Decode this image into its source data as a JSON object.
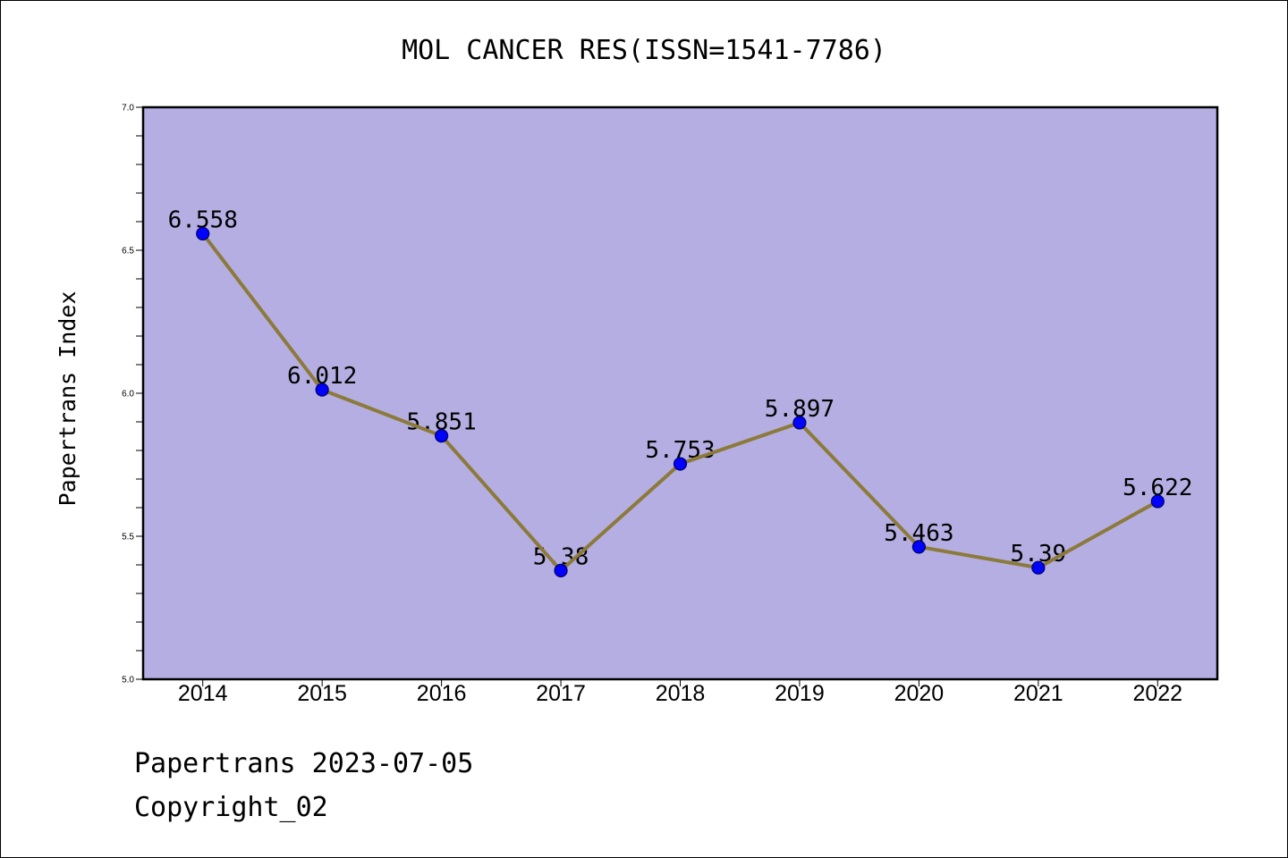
{
  "colors": {
    "page_background": "#ffffff",
    "plot_background": "#b4aee2",
    "line": "#8c7a3a",
    "marker_fill": "#0000ff",
    "marker_edge": "#000064",
    "axis": "#000000"
  },
  "chart_data": {
    "type": "line",
    "title": "MOL CANCER RES(ISSN=1541-7786)",
    "ylabel": "Papertrans Index",
    "categories": [
      "2014",
      "2015",
      "2016",
      "2017",
      "2018",
      "2019",
      "2020",
      "2021",
      "2022"
    ],
    "series": [
      {
        "values": [
          6.558,
          6.012,
          5.851,
          5.38,
          5.753,
          5.897,
          5.463,
          5.39,
          5.622
        ]
      }
    ],
    "ylim": [
      5.0,
      7.0
    ],
    "yticks": [
      "5.0",
      "5.5",
      "6.0",
      "6.5",
      "7.0"
    ],
    "y_minor_step": 0.1,
    "grid": false
  },
  "footer": {
    "source": "Papertrans 2023-07-05",
    "copyright": "Copyright_02"
  }
}
